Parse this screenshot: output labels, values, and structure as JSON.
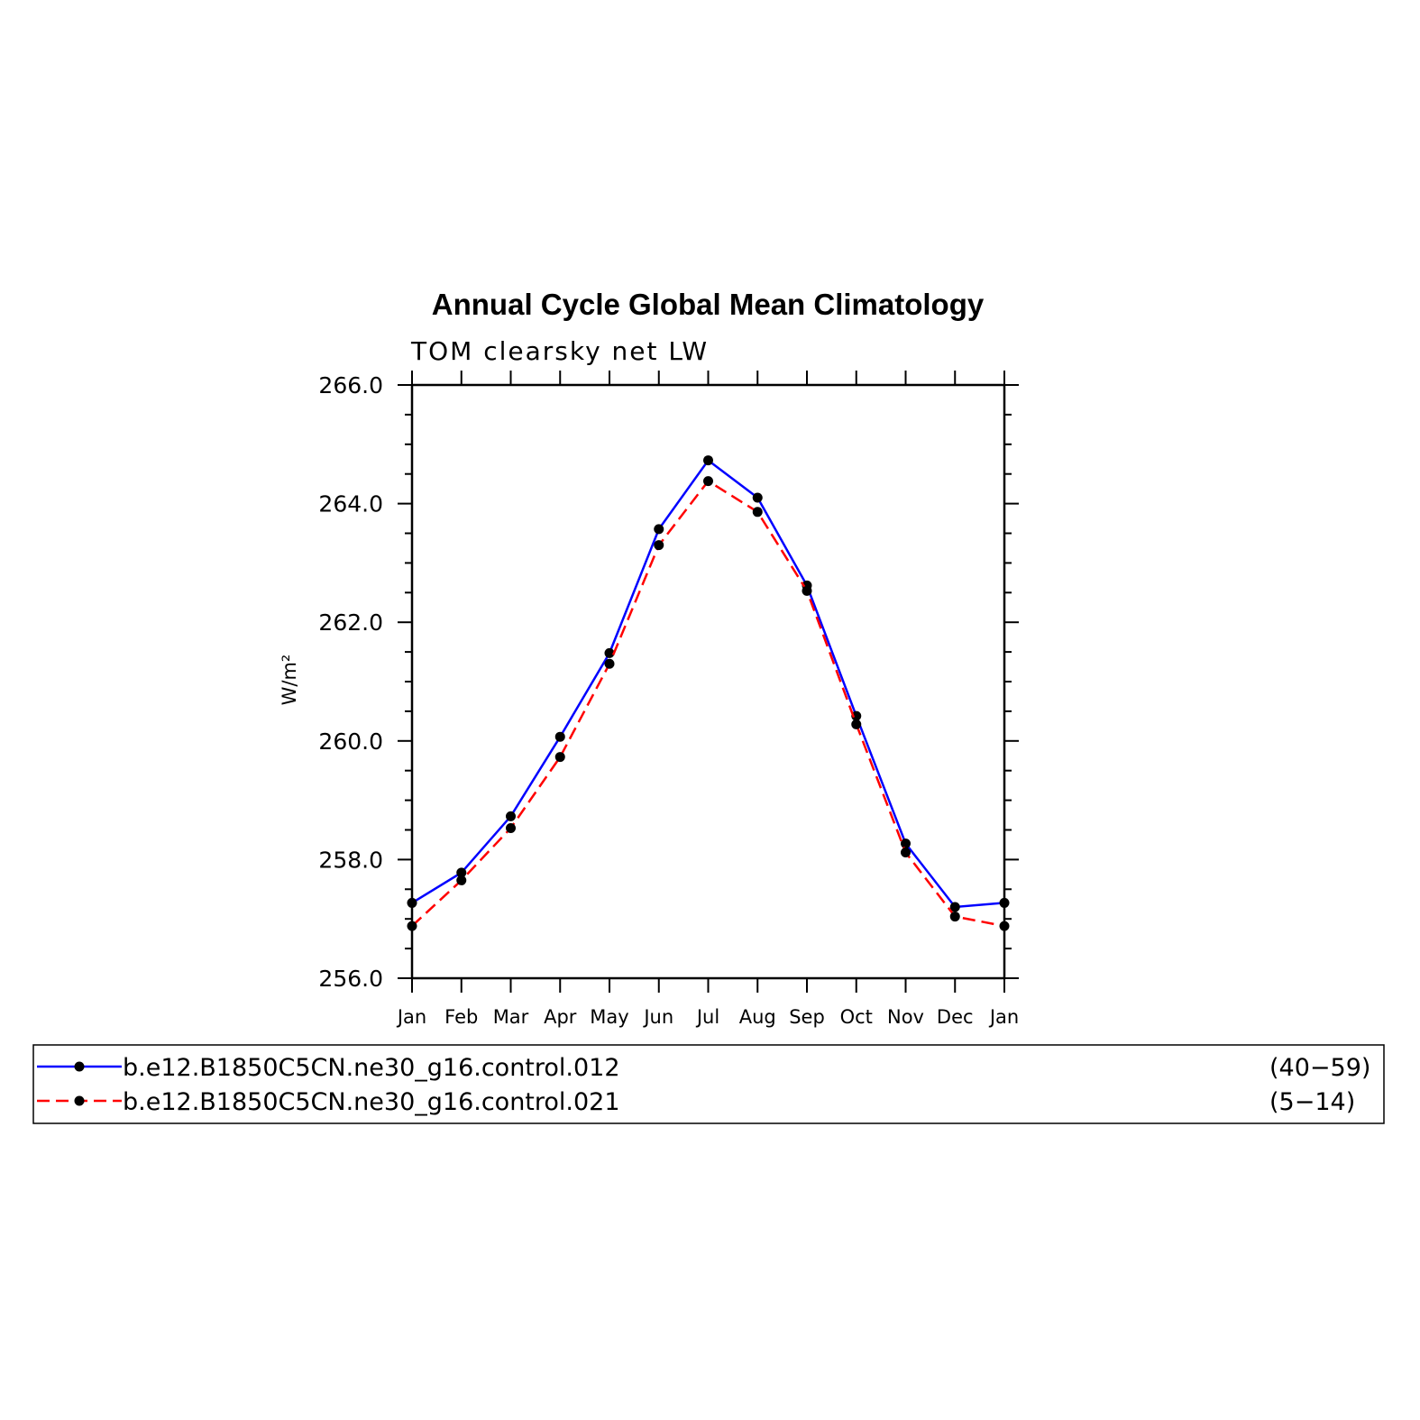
{
  "chart_data": {
    "type": "line",
    "title": "Annual Cycle Global Mean Climatology",
    "subtitle": "TOM clearsky net LW",
    "ylabel": "W/m²",
    "xlabel": "",
    "categories": [
      "Jan",
      "Feb",
      "Mar",
      "Apr",
      "May",
      "Jun",
      "Jul",
      "Aug",
      "Sep",
      "Oct",
      "Nov",
      "Dec",
      "Jan"
    ],
    "ylim": [
      256.0,
      266.0
    ],
    "yticks": [
      "256.0",
      "258.0",
      "260.0",
      "262.0",
      "264.0",
      "266.0"
    ],
    "ytick_values": [
      256,
      258,
      260,
      262,
      264,
      266
    ],
    "grid": false,
    "legend_placement": "bottom",
    "series": [
      {
        "name": "b.e12.B1850C5CN.ne30_g16.control.012",
        "years": "(40−59)",
        "color": "#0000ff",
        "style": "solid",
        "values": [
          257.27,
          257.78,
          258.73,
          260.07,
          261.48,
          263.57,
          264.73,
          264.1,
          262.62,
          260.42,
          258.27,
          257.2,
          257.27
        ]
      },
      {
        "name": "b.e12.B1850C5CN.ne30_g16.control.021",
        "years": "(5−14)",
        "color": "#ff0000",
        "style": "dashed",
        "values": [
          256.88,
          257.65,
          258.53,
          259.73,
          261.3,
          263.3,
          264.38,
          263.86,
          262.53,
          260.28,
          258.12,
          257.04,
          256.88
        ]
      }
    ]
  }
}
